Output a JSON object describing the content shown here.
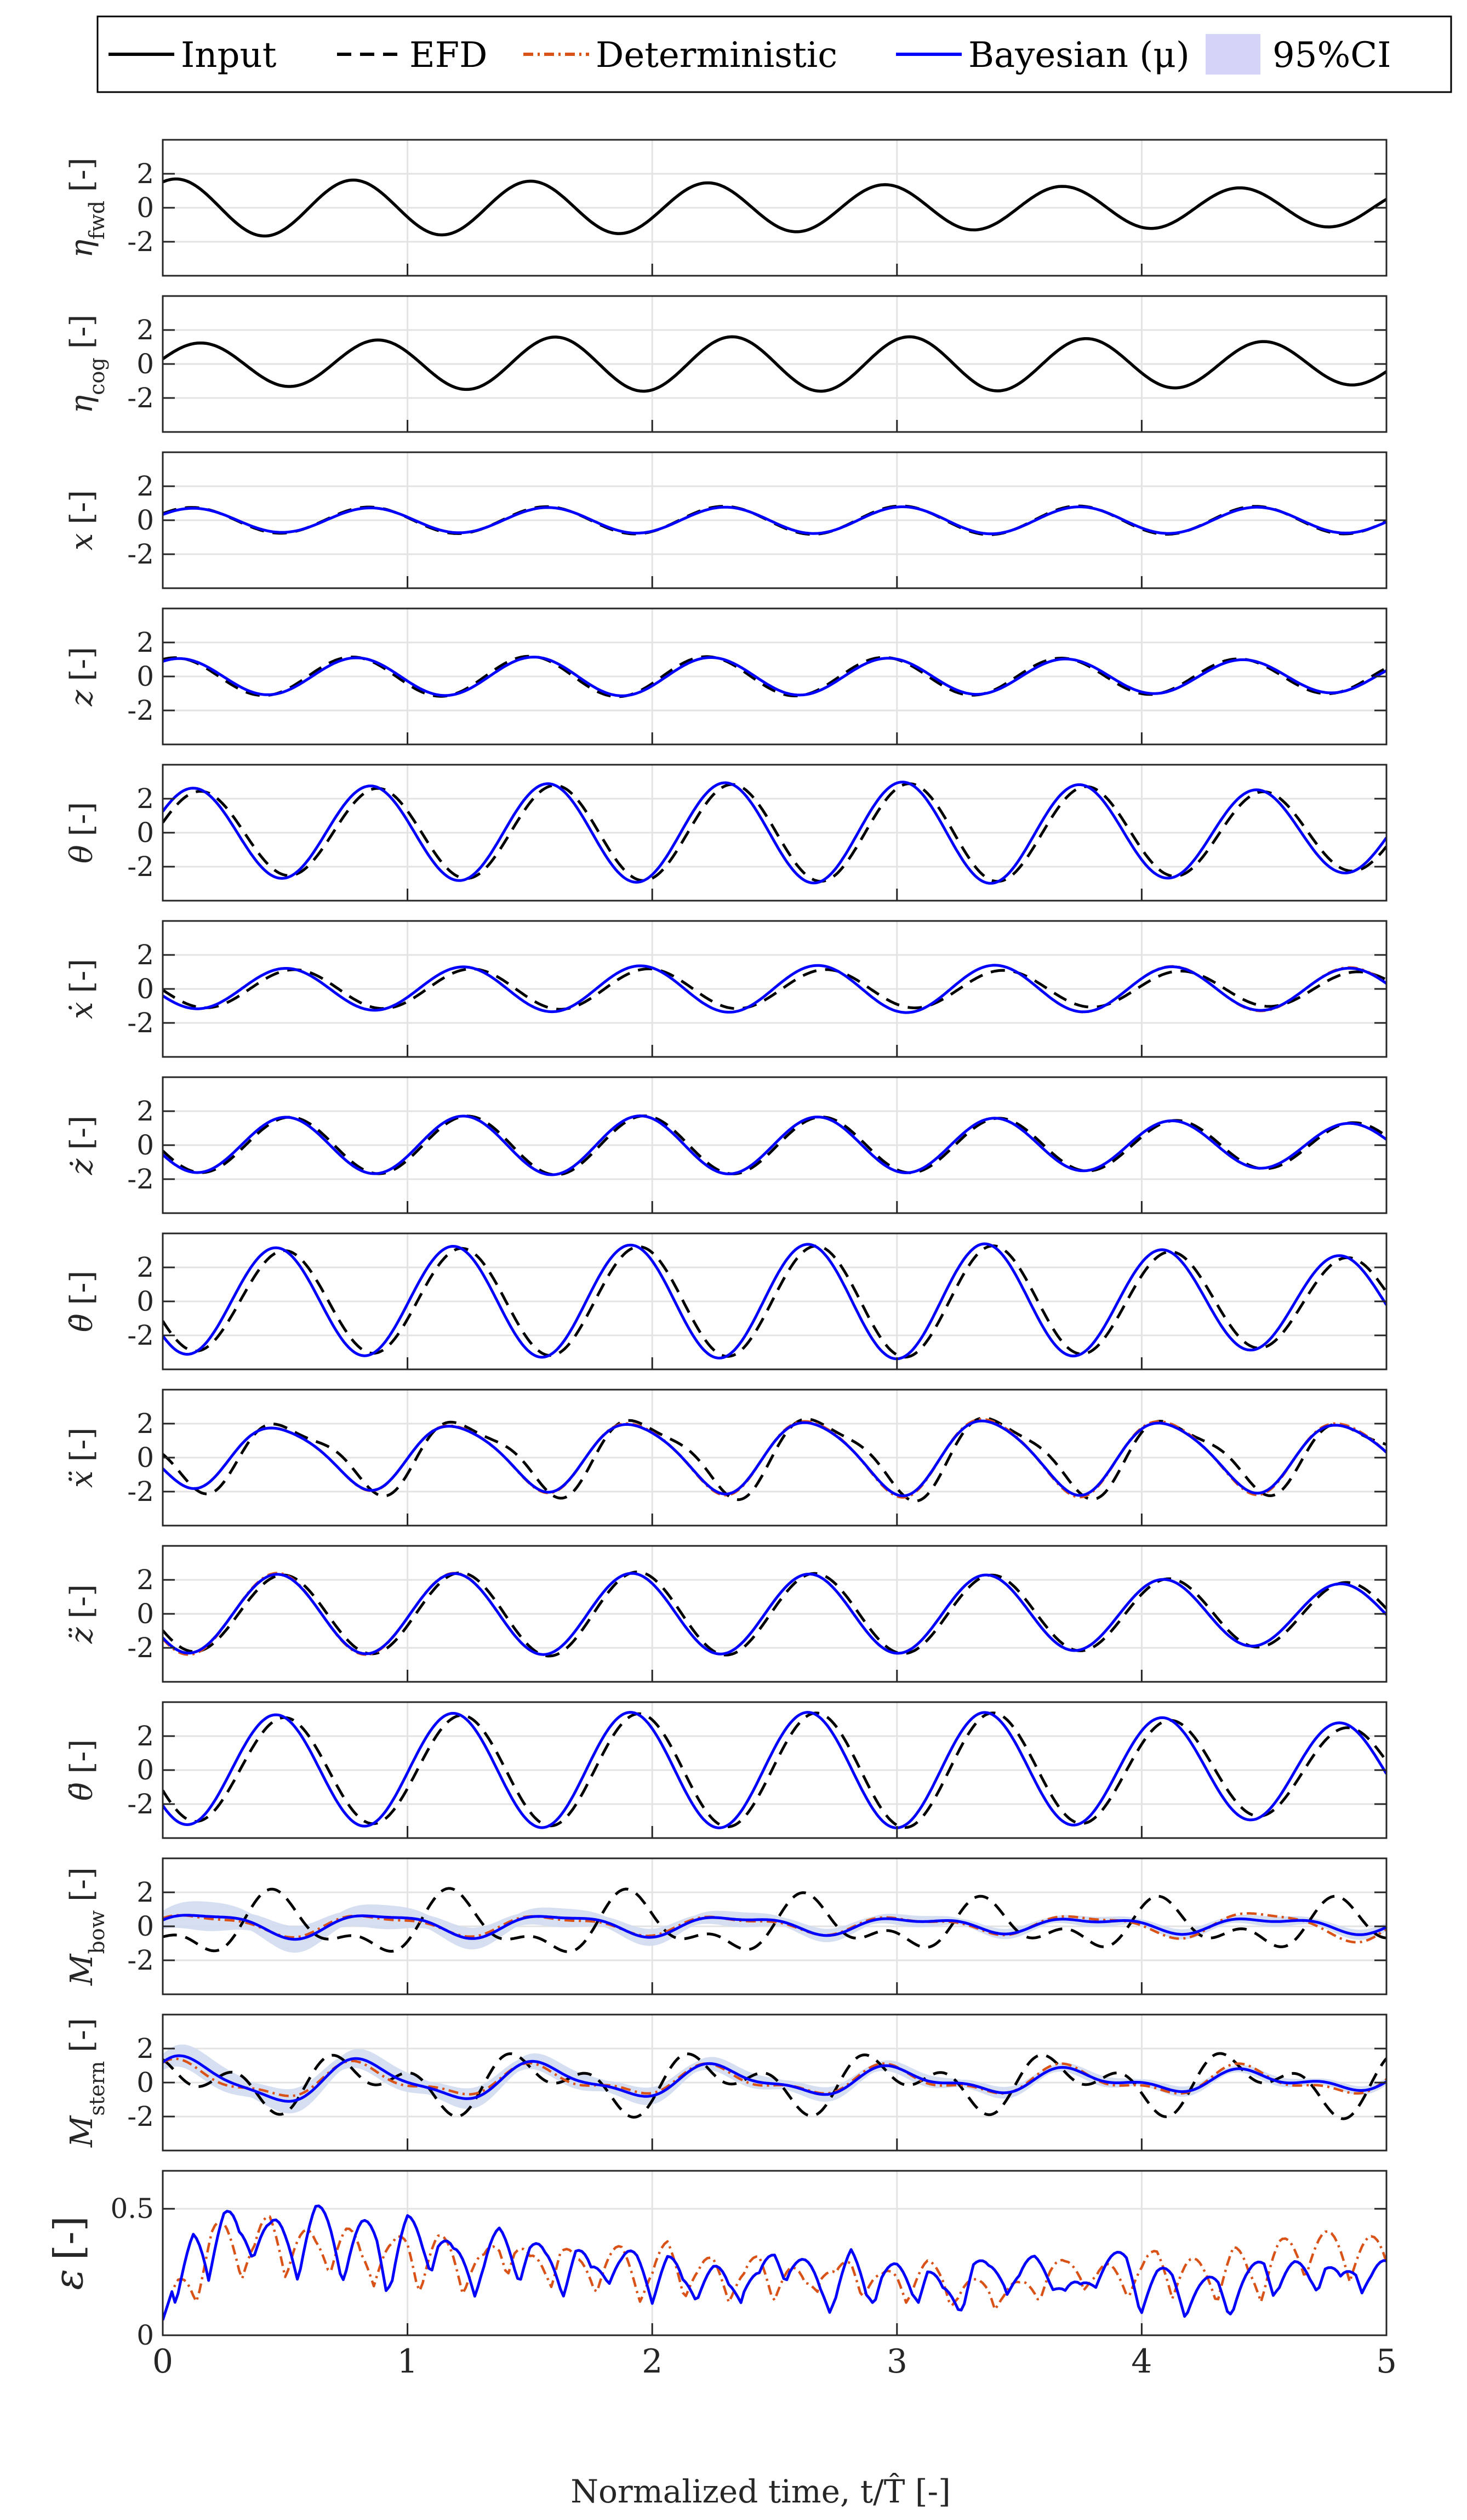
{
  "chart_data": {
    "type": "line",
    "x_label": "Normalized time, t/T̂ [-]",
    "x_range": [
      0,
      5
    ],
    "x_ticks": [
      "0",
      "1",
      "2",
      "3",
      "4",
      "5"
    ],
    "grid": true,
    "legend_position": "top",
    "legend": [
      {
        "key": "input",
        "label": "Input",
        "style": "solid",
        "color": "#000000"
      },
      {
        "key": "efd",
        "label": "EFD",
        "style": "dashed",
        "color": "#000000"
      },
      {
        "key": "det",
        "label": "Deterministic",
        "style": "dash-dot",
        "color": "#d95319"
      },
      {
        "key": "bay",
        "label": "Bayesian (μ)",
        "style": "solid",
        "color": "#0000ff"
      },
      {
        "key": "ci",
        "label": "95%CI",
        "style": "band",
        "color": "#d4d4f7"
      }
    ],
    "panels": [
      {
        "key": "eta_fwd",
        "symbol": "η",
        "subscript": "fwd",
        "unit": "[-]",
        "y_range": [
          -4,
          4
        ],
        "y_ticks": [
          "2",
          "0",
          "-2"
        ],
        "signals": {
          "input": {
            "freq": 1.38,
            "phase": 1.1,
            "amp": [
              1.7,
              1.55,
              1.3,
              1.1
            ],
            "offset": 0
          }
        }
      },
      {
        "key": "eta_cog",
        "symbol": "η",
        "subscript": "cog",
        "unit": "[-]",
        "y_range": [
          -4,
          4
        ],
        "y_ticks": [
          "2",
          "0",
          "-2"
        ],
        "signals": {
          "input": {
            "freq": 1.38,
            "phase": 0.25,
            "amp": [
              1.2,
              1.6,
              1.6,
              1.2
            ],
            "offset": 0
          }
        }
      },
      {
        "key": "x",
        "symbol": "x",
        "subscript": "",
        "unit": "[-]",
        "y_range": [
          -4,
          4
        ],
        "y_ticks": [
          "2",
          "0",
          "-2"
        ],
        "signals": {
          "efd": {
            "freq": 1.38,
            "phase": 0.55,
            "amp": [
              0.75,
              0.8,
              0.85,
              0.8
            ],
            "offset": 0
          },
          "det": {
            "freq": 1.38,
            "phase": 0.5,
            "amp": [
              0.7,
              0.75,
              0.8,
              0.75
            ],
            "offset": 0
          },
          "bay": {
            "freq": 1.38,
            "phase": 0.5,
            "amp": [
              0.7,
              0.75,
              0.8,
              0.75
            ],
            "offset": 0
          }
        }
      },
      {
        "key": "z",
        "symbol": "z",
        "subscript": "",
        "unit": "[-]",
        "y_range": [
          -4,
          4
        ],
        "y_ticks": [
          "2",
          "0",
          "-2"
        ],
        "signals": {
          "efd": {
            "freq": 1.38,
            "phase": 1.15,
            "amp": [
              1.1,
              1.2,
              1.1,
              1.0
            ],
            "offset": 0
          },
          "det": {
            "freq": 1.38,
            "phase": 1.0,
            "amp": [
              1.05,
              1.15,
              1.05,
              0.95
            ],
            "offset": 0
          },
          "bay": {
            "freq": 1.38,
            "phase": 1.0,
            "amp": [
              1.05,
              1.15,
              1.05,
              0.95
            ],
            "offset": 0
          }
        }
      },
      {
        "key": "theta",
        "symbol": "θ",
        "subscript": "",
        "unit": "[-]",
        "y_range": [
          -4,
          4
        ],
        "y_ticks": [
          "2",
          "0",
          "-2"
        ],
        "signals": {
          "efd": {
            "freq": 1.38,
            "phase": 0.25,
            "amp": [
              2.4,
              2.8,
              2.9,
              2.2
            ],
            "offset": 0
          },
          "det": {
            "freq": 1.38,
            "phase": 0.5,
            "amp": [
              2.6,
              2.9,
              3.0,
              2.3
            ],
            "offset": 0
          },
          "bay": {
            "freq": 1.38,
            "phase": 0.5,
            "amp": [
              2.6,
              2.9,
              3.0,
              2.3
            ],
            "offset": 0
          }
        }
      },
      {
        "key": "xdot",
        "symbol": "ẋ",
        "subscript": "",
        "unit": "[-]",
        "y_range": [
          -4,
          4
        ],
        "y_ticks": [
          "2",
          "0",
          "-2"
        ],
        "signals": {
          "efd": {
            "freq": 1.38,
            "phase": 3.2,
            "amp": [
              1.1,
              1.2,
              1.1,
              1.0
            ],
            "offset": 0
          },
          "det": {
            "freq": 1.38,
            "phase": 3.5,
            "amp": [
              1.15,
              1.35,
              1.4,
              1.25
            ],
            "offset": 0
          },
          "bay": {
            "freq": 1.38,
            "phase": 3.5,
            "amp": [
              1.15,
              1.35,
              1.4,
              1.2
            ],
            "offset": 0
          }
        }
      },
      {
        "key": "zdot",
        "symbol": "ż",
        "subscript": "",
        "unit": "[-]",
        "y_range": [
          -4,
          4
        ],
        "y_ticks": [
          "2",
          "0",
          "-2"
        ],
        "signals": {
          "efd": {
            "freq": 1.38,
            "phase": 3.35,
            "amp": [
              1.6,
              1.75,
              1.6,
              1.3
            ],
            "offset": 0
          },
          "det": {
            "freq": 1.38,
            "phase": 3.5,
            "amp": [
              1.6,
              1.75,
              1.6,
              1.25
            ],
            "offset": 0
          },
          "bay": {
            "freq": 1.38,
            "phase": 3.5,
            "amp": [
              1.6,
              1.75,
              1.6,
              1.25
            ],
            "offset": 0
          }
        }
      },
      {
        "key": "thetadot",
        "symbol": "θ̇",
        "subscript": "",
        "unit": "[-]",
        "y_range": [
          -4,
          4
        ],
        "y_ticks": [
          "2",
          "0",
          "-2"
        ],
        "signals": {
          "efd": {
            "freq": 1.38,
            "phase": 3.55,
            "amp": [
              2.9,
              3.2,
              3.3,
              2.5
            ],
            "offset": 0
          },
          "det": {
            "freq": 1.38,
            "phase": 3.85,
            "amp": [
              3.1,
              3.3,
              3.4,
              2.6
            ],
            "offset": 0
          },
          "bay": {
            "freq": 1.38,
            "phase": 3.85,
            "amp": [
              3.1,
              3.3,
              3.4,
              2.6
            ],
            "offset": 0
          }
        }
      },
      {
        "key": "xddot",
        "symbol": "ẍ",
        "subscript": "",
        "unit": "[-]",
        "y_range": [
          -4,
          4
        ],
        "y_ticks": [
          "2",
          "0",
          "-2"
        ],
        "signals": {
          "efd": {
            "freq": 1.38,
            "phase": 3.4,
            "amp": [
              1.8,
              2.1,
              2.3,
              1.8
            ],
            "offset": 0.15,
            "h2": 0.55,
            "phase2": 1.2
          },
          "det": {
            "freq": 1.38,
            "phase": 3.75,
            "amp": [
              1.7,
              2.0,
              2.3,
              2.0
            ],
            "offset": 0.1,
            "h2": 0.25,
            "phase2": 2.0
          },
          "bay": {
            "freq": 1.38,
            "phase": 3.75,
            "amp": [
              1.7,
              1.95,
              2.2,
              1.9
            ],
            "offset": 0.1,
            "h2": 0.25,
            "phase2": 2.0
          }
        }
      },
      {
        "key": "zddot",
        "symbol": "z̈",
        "subscript": "",
        "unit": "[-]",
        "y_range": [
          -4,
          4
        ],
        "y_ticks": [
          "2",
          "0",
          "-2"
        ],
        "signals": {
          "efd": {
            "freq": 1.38,
            "phase": 3.6,
            "amp": [
              2.2,
              2.5,
              2.3,
              1.8
            ],
            "offset": 0
          },
          "det": {
            "freq": 1.38,
            "phase": 3.8,
            "amp": [
              2.4,
              2.4,
              2.3,
              1.7
            ],
            "offset": 0
          },
          "bay": {
            "freq": 1.38,
            "phase": 3.8,
            "amp": [
              2.3,
              2.4,
              2.3,
              1.7
            ],
            "offset": 0
          }
        }
      },
      {
        "key": "thetaddot",
        "symbol": "θ̈",
        "subscript": "",
        "unit": "[-]",
        "y_range": [
          -4,
          4
        ],
        "y_ticks": [
          "2",
          "0",
          "-2"
        ],
        "signals": {
          "efd": {
            "freq": 1.38,
            "phase": 3.55,
            "amp": [
              3.0,
              3.3,
              3.4,
              2.4
            ],
            "offset": 0
          },
          "det": {
            "freq": 1.38,
            "phase": 3.85,
            "amp": [
              3.2,
              3.4,
              3.4,
              2.7
            ],
            "offset": 0
          },
          "bay": {
            "freq": 1.38,
            "phase": 3.85,
            "amp": [
              3.2,
              3.4,
              3.4,
              2.7
            ],
            "offset": 0
          }
        }
      },
      {
        "key": "M_bow",
        "symbol": "M",
        "subscript": "bow",
        "unit": "[-]",
        "y_range": [
          -4,
          4
        ],
        "y_ticks": [
          "2",
          "0",
          "-2"
        ],
        "signals": {
          "efd": {
            "freq": 1.38,
            "phase": 3.8,
            "amp": [
              1.4,
              1.5,
              1.0,
              1.0
            ],
            "offset": 0,
            "h2": 0.8,
            "phase2": 0.3
          },
          "det": {
            "freq": 1.38,
            "phase": 0.3,
            "amp": [
              0.6,
              0.5,
              0.4,
              0.9
            ],
            "offset": 0.1,
            "h2": 0.2,
            "phase2": 1.5
          },
          "bay": {
            "freq": 1.38,
            "phase": 0.1,
            "amp": [
              0.7,
              0.6,
              0.35,
              0.4
            ],
            "offset": 0.1,
            "h2": 0.2,
            "phase2": 1.5
          },
          "ci": {
            "halfwidth": [
              0.9,
              0.55,
              0.3,
              0.3
            ]
          }
        }
      },
      {
        "key": "M_stern",
        "symbol": "M",
        "subscript": "stern",
        "unit": "[-]",
        "y_range": [
          -4,
          4
        ],
        "y_ticks": [
          "2",
          "0",
          "-2"
        ],
        "signals": {
          "efd": {
            "freq": 1.38,
            "phase": 1.0,
            "amp": [
              0.9,
              1.2,
              1.0,
              1.3
            ],
            "offset": 0,
            "h2": 1.0,
            "phase2": 2.5
          },
          "det": {
            "freq": 1.38,
            "phase": 0.9,
            "amp": [
              1.0,
              0.7,
              0.7,
              0.7
            ],
            "offset": 0.1,
            "h2": 0.35,
            "phase2": 1.0
          },
          "bay": {
            "freq": 1.38,
            "phase": 0.7,
            "amp": [
              1.3,
              0.9,
              0.6,
              0.4
            ],
            "offset": 0.1,
            "h2": 0.3,
            "phase2": 1.0
          },
          "ci": {
            "halfwidth": [
              0.8,
              0.55,
              0.35,
              0.25
            ]
          }
        }
      },
      {
        "key": "epsilon",
        "symbol": "ε",
        "subscript": "",
        "unit": "[-]",
        "y_range": [
          0,
          0.65
        ],
        "y_ticks": [
          "0.5",
          "0"
        ],
        "signals": {
          "det": {
            "kind": "error",
            "base": [
              0.42,
              0.3,
              0.22,
              0.33
            ],
            "amp": 0.12,
            "seed": 7
          },
          "bay": {
            "kind": "error",
            "base": [
              0.45,
              0.3,
              0.22,
              0.24
            ],
            "amp": 0.15,
            "seed": 3
          }
        }
      }
    ]
  }
}
